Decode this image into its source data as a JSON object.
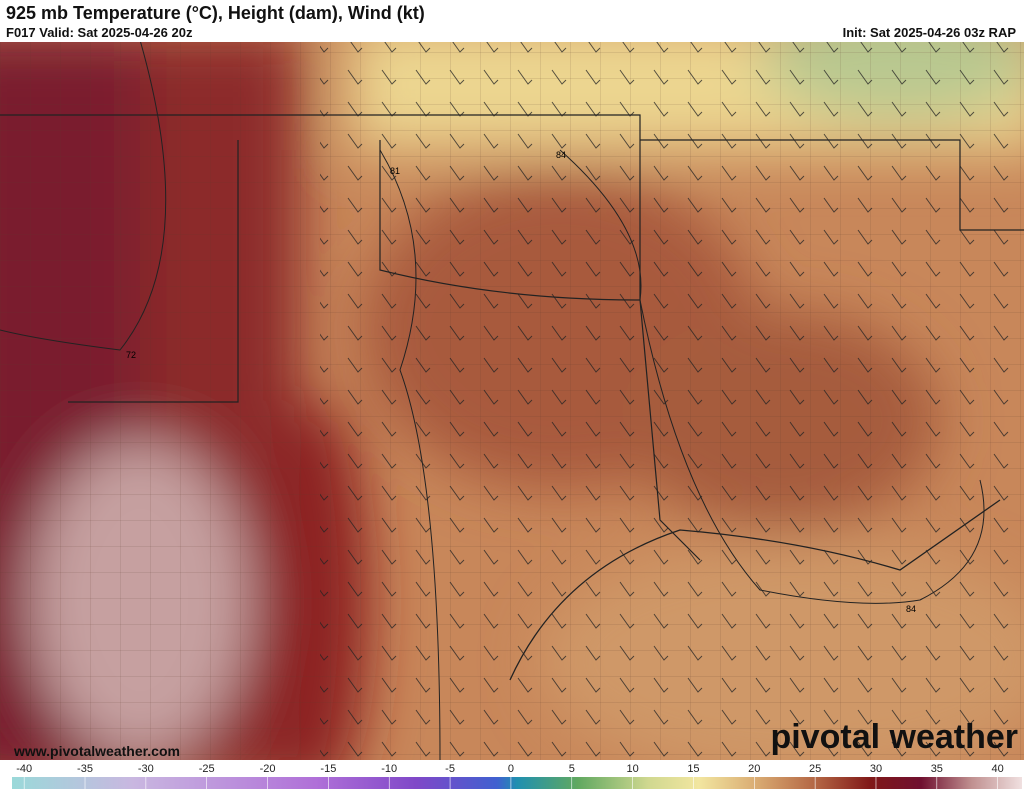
{
  "header": {
    "title": "925 mb Temperature (°C), Height (dam), Wind (kt)",
    "valid": "F017 Valid: Sat 2025-04-26 20z",
    "init": "Init: Sat 2025-04-26 03z RAP"
  },
  "map": {
    "contour_labels": [
      "81",
      "84",
      "72",
      "84"
    ]
  },
  "watermark": {
    "url": "www.pivotalweather.com",
    "brand": "pivotal weather"
  },
  "colorbar": {
    "range": [
      -41,
      42
    ],
    "ticks": [
      -40,
      -35,
      -30,
      -25,
      -20,
      -15,
      -10,
      -5,
      0,
      5,
      10,
      15,
      20,
      25,
      30,
      35,
      40
    ]
  }
}
